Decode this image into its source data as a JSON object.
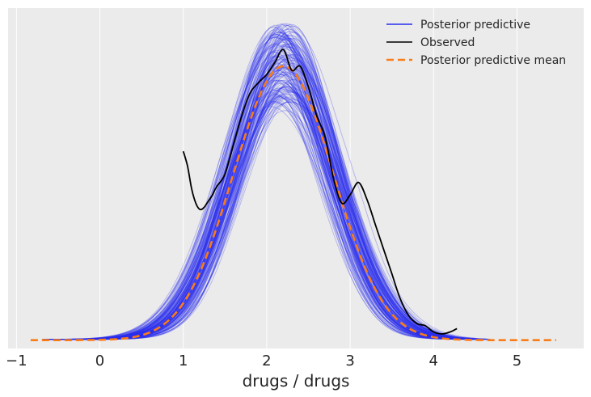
{
  "chart_data": {
    "type": "line",
    "title": "",
    "xlabel": "drugs / drugs",
    "ylabel": "",
    "xlim": [
      -1.1,
      5.8
    ],
    "ylim": [
      -0.02,
      0.8
    ],
    "x_ticks": [
      -1,
      0,
      1,
      2,
      3,
      4,
      5
    ],
    "x_tick_labels": [
      "−1",
      "0",
      "1",
      "2",
      "3",
      "4",
      "5"
    ],
    "grid": "x",
    "legend_position": "top-right",
    "colors": {
      "background": "#ebebeb",
      "grid": "#ffffff",
      "posterior_predictive": "#2a2eec",
      "observed": "#000000",
      "posterior_predictive_mean": "#fa7c17"
    },
    "series": [
      {
        "name": "Posterior predictive",
        "kind": "sample-band",
        "x_range": [
          -0.7,
          4.7
        ],
        "peak_x": 2.2,
        "peak_y_range": [
          0.56,
          0.76
        ]
      },
      {
        "name": "Observed",
        "x": [
          1.0,
          1.05,
          1.1,
          1.15,
          1.2,
          1.25,
          1.3,
          1.35,
          1.4,
          1.5,
          1.6,
          1.7,
          1.8,
          1.9,
          2.0,
          2.1,
          2.2,
          2.3,
          2.4,
          2.5,
          2.6,
          2.7,
          2.8,
          2.9,
          3.0,
          3.1,
          3.2,
          3.3,
          3.4,
          3.5,
          3.6,
          3.7,
          3.8,
          3.9,
          4.0,
          4.1,
          4.2,
          4.28
        ],
        "y": [
          0.455,
          0.42,
          0.365,
          0.33,
          0.315,
          0.32,
          0.335,
          0.35,
          0.37,
          0.4,
          0.47,
          0.54,
          0.595,
          0.62,
          0.64,
          0.67,
          0.7,
          0.65,
          0.66,
          0.61,
          0.54,
          0.49,
          0.39,
          0.33,
          0.35,
          0.38,
          0.34,
          0.28,
          0.22,
          0.16,
          0.1,
          0.06,
          0.04,
          0.035,
          0.02,
          0.015,
          0.02,
          0.028
        ]
      },
      {
        "name": "Posterior predictive mean",
        "kind": "normal-curve",
        "mean": 2.2,
        "sd": 0.6,
        "peak": 0.66,
        "x_range": [
          -0.83,
          5.5
        ]
      }
    ]
  }
}
